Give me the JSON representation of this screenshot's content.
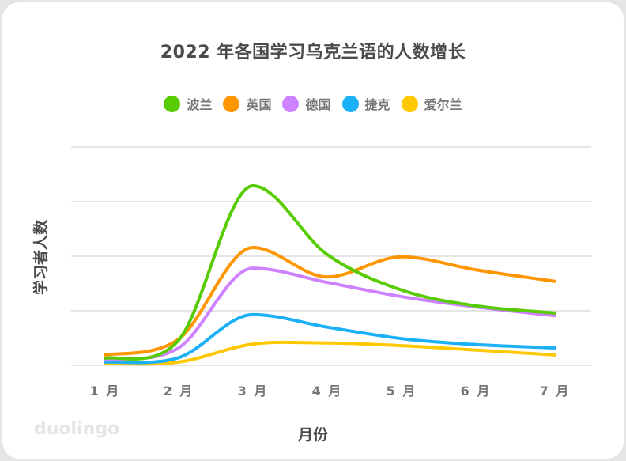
{
  "title": "2022 年各国学习乌克兰语的人数增长",
  "legend": [
    {
      "label": "波兰",
      "color": "#58cc02"
    },
    {
      "label": "英国",
      "color": "#ff9600"
    },
    {
      "label": "德国",
      "color": "#ce82ff"
    },
    {
      "label": "捷克",
      "color": "#1cb0f6"
    },
    {
      "label": "爱尔兰",
      "color": "#ffc800"
    }
  ],
  "ylabel": "学习者人数",
  "xlabel": "月份",
  "xticks": [
    "1 月",
    "2 月",
    "3 月",
    "4 月",
    "5 月",
    "6 月",
    "7 月"
  ],
  "logo": "duolingo",
  "chart_data": {
    "type": "line",
    "title": "2022 年各国学习乌克兰语的人数增长",
    "xlabel": "月份",
    "ylabel": "学习者人数",
    "categories": [
      "1 月",
      "2 月",
      "3 月",
      "4 月",
      "5 月",
      "6 月",
      "7 月"
    ],
    "series": [
      {
        "name": "波兰",
        "color": "#58cc02",
        "values": [
          0.13,
          0.46,
          3.29,
          2.03,
          1.38,
          1.09,
          0.96
        ]
      },
      {
        "name": "英国",
        "color": "#ff9600",
        "values": [
          0.19,
          0.48,
          2.16,
          1.62,
          1.99,
          1.75,
          1.54
        ]
      },
      {
        "name": "德国",
        "color": "#ce82ff",
        "values": [
          0.1,
          0.32,
          1.78,
          1.52,
          1.26,
          1.07,
          0.91
        ]
      },
      {
        "name": "捷克",
        "color": "#1cb0f6",
        "values": [
          0.06,
          0.14,
          0.93,
          0.7,
          0.49,
          0.38,
          0.32
        ]
      },
      {
        "name": "爱尔兰",
        "color": "#ffc800",
        "values": [
          0.03,
          0.06,
          0.39,
          0.41,
          0.36,
          0.28,
          0.19
        ]
      }
    ],
    "ylim": [
      0,
      4
    ],
    "y_units": "relative (gridline units, no tick labels shown)",
    "grid": true,
    "legend_position": "top"
  }
}
